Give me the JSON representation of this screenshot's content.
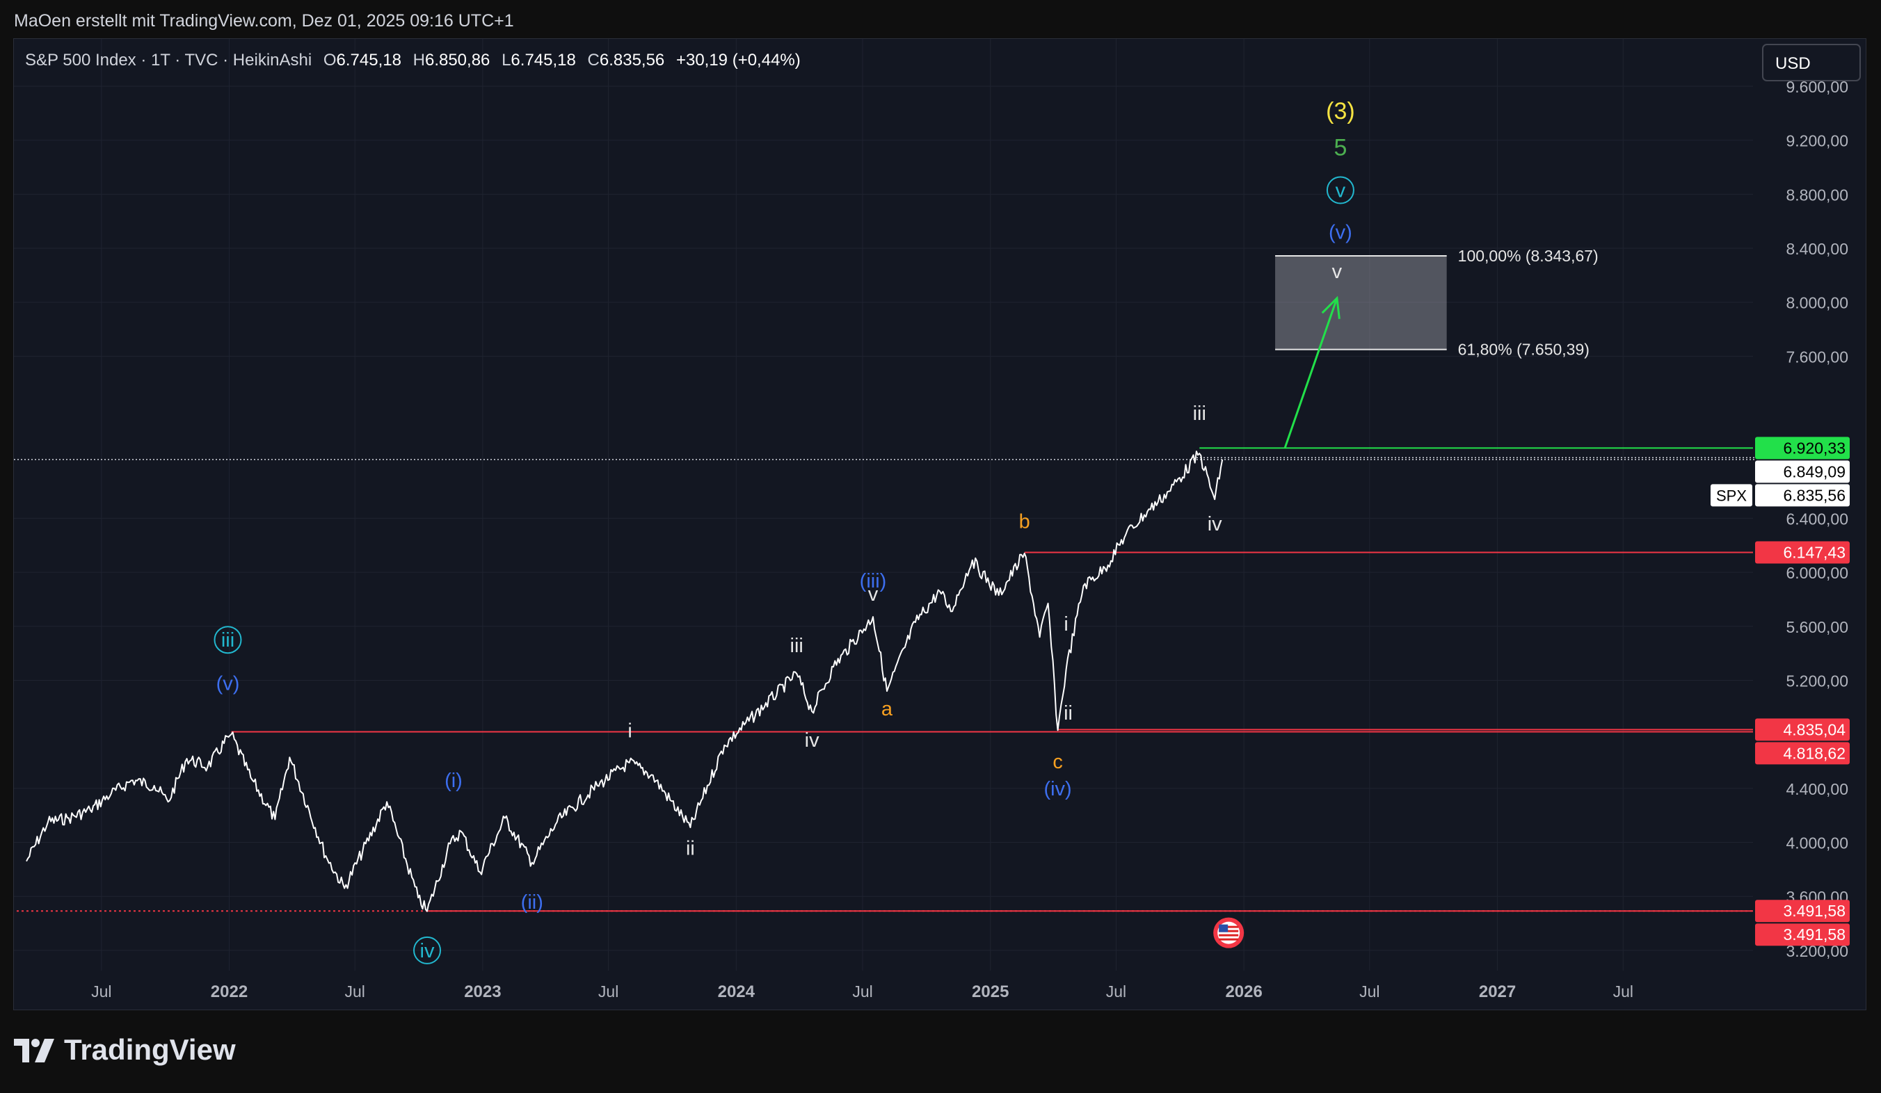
{
  "header": {
    "attribution": "MaOen erstellt mit TradingView.com, Dez 01, 2025 09:16 UTC+1"
  },
  "legend": {
    "symbol": "S&P 500 Index · 1T · TVC · HeikinAshi",
    "o_label": "O",
    "o_value": "6.745,18",
    "h_label": "H",
    "h_value": "6.850,86",
    "l_label": "L",
    "l_value": "6.745,18",
    "c_label": "C",
    "c_value": "6.835,56",
    "change": "+30,19 (+0,44%)"
  },
  "currency_button": "USD",
  "footer": {
    "brand": "TradingView"
  },
  "colors": {
    "background": "#131722",
    "grid": "#1f2330",
    "price": "#ffffff",
    "red_level": "#f23645",
    "green_level": "#22e04a",
    "wave_blue": "#3d6ff0",
    "wave_cyan": "#22b8cf",
    "wave_orange": "#f7a021",
    "wave_yellow": "#f5e342",
    "wave_green": "#4caf50",
    "white": "#e6e6e6"
  },
  "chart_data": {
    "type": "line",
    "style": "HeikinAshi",
    "title": "S&P 500 Index · 1T · TVC · HeikinAshi",
    "ylim": [
      3050,
      9950
    ],
    "y_ticks": [
      {
        "v": 3200,
        "label": "3.200,00"
      },
      {
        "v": 3600,
        "label": "3.600,00"
      },
      {
        "v": 4000,
        "label": "4.000,00"
      },
      {
        "v": 4400,
        "label": "4.400,00"
      },
      {
        "v": 5200,
        "label": "5.200,00"
      },
      {
        "v": 5600,
        "label": "5.600,00"
      },
      {
        "v": 6000,
        "label": "6.000,00"
      },
      {
        "v": 6400,
        "label": "6.400,00"
      },
      {
        "v": 7600,
        "label": "7.600,00"
      },
      {
        "v": 8000,
        "label": "8.000,00"
      },
      {
        "v": 8400,
        "label": "8.400,00"
      },
      {
        "v": 8800,
        "label": "8.800,00"
      },
      {
        "v": 9200,
        "label": "9.200,00"
      },
      {
        "v": 9600,
        "label": "9.600,00"
      }
    ],
    "x_ticks": [
      {
        "t": "2021-07-01",
        "label": "Jul",
        "major": false
      },
      {
        "t": "2022-01-01",
        "label": "2022",
        "major": true
      },
      {
        "t": "2022-07-01",
        "label": "Jul",
        "major": false
      },
      {
        "t": "2023-01-01",
        "label": "2023",
        "major": true
      },
      {
        "t": "2023-07-01",
        "label": "Jul",
        "major": false
      },
      {
        "t": "2024-01-01",
        "label": "2024",
        "major": true
      },
      {
        "t": "2024-07-01",
        "label": "Jul",
        "major": false
      },
      {
        "t": "2025-01-01",
        "label": "2025",
        "major": true
      },
      {
        "t": "2025-07-01",
        "label": "Jul",
        "major": false
      },
      {
        "t": "2026-01-01",
        "label": "2026",
        "major": true
      },
      {
        "t": "2026-07-01",
        "label": "Jul",
        "major": false
      },
      {
        "t": "2027-01-01",
        "label": "2027",
        "major": true
      },
      {
        "t": "2027-07-01",
        "label": "Jul",
        "major": false
      }
    ],
    "series": [
      {
        "points": [
          [
            "2021-03-15",
            3860
          ],
          [
            "2021-04-15",
            4150
          ],
          [
            "2021-05-15",
            4180
          ],
          [
            "2021-06-15",
            4240
          ],
          [
            "2021-07-15",
            4360
          ],
          [
            "2021-08-15",
            4460
          ],
          [
            "2021-09-15",
            4420
          ],
          [
            "2021-10-05",
            4300
          ],
          [
            "2021-11-01",
            4620
          ],
          [
            "2021-12-01",
            4560
          ],
          [
            "2021-12-31",
            4780
          ],
          [
            "2022-01-04",
            4800
          ],
          [
            "2022-02-01",
            4480
          ],
          [
            "2022-03-08",
            4170
          ],
          [
            "2022-03-29",
            4630
          ],
          [
            "2022-05-20",
            3900
          ],
          [
            "2022-06-16",
            3660
          ],
          [
            "2022-08-16",
            4300
          ],
          [
            "2022-09-30",
            3590
          ],
          [
            "2022-10-13",
            3490
          ],
          [
            "2022-11-15",
            3990
          ],
          [
            "2022-12-01",
            4080
          ],
          [
            "2022-12-28",
            3780
          ],
          [
            "2023-02-02",
            4180
          ],
          [
            "2023-03-13",
            3850
          ],
          [
            "2023-04-18",
            4150
          ],
          [
            "2023-06-15",
            4420
          ],
          [
            "2023-07-31",
            4590
          ],
          [
            "2023-09-01",
            4500
          ],
          [
            "2023-10-27",
            4110
          ],
          [
            "2023-12-15",
            4720
          ],
          [
            "2024-03-28",
            5250
          ],
          [
            "2024-04-19",
            4970
          ],
          [
            "2024-05-20",
            5300
          ],
          [
            "2024-07-16",
            5670
          ],
          [
            "2024-08-05",
            5120
          ],
          [
            "2024-09-15",
            5630
          ],
          [
            "2024-10-20",
            5860
          ],
          [
            "2024-11-05",
            5710
          ],
          [
            "2024-12-06",
            6090
          ],
          [
            "2025-01-13",
            5830
          ],
          [
            "2025-02-19",
            6140
          ],
          [
            "2025-03-13",
            5520
          ],
          [
            "2025-03-25",
            5770
          ],
          [
            "2025-04-08",
            4830
          ],
          [
            "2025-04-20",
            5280
          ],
          [
            "2025-05-15",
            5900
          ],
          [
            "2025-06-15",
            6030
          ],
          [
            "2025-07-15",
            6280
          ],
          [
            "2025-08-15",
            6450
          ],
          [
            "2025-09-15",
            6600
          ],
          [
            "2025-10-29",
            6880
          ],
          [
            "2025-11-20",
            6540
          ],
          [
            "2025-12-01",
            6835
          ]
        ]
      }
    ],
    "levels": [
      {
        "value": 6920.33,
        "label": "6.920,33",
        "color": "green",
        "from": "2025-10-29"
      },
      {
        "value": 6147.43,
        "label": "6.147,43",
        "color": "red",
        "from": "2025-02-19"
      },
      {
        "value": 4835.04,
        "label": "4.835,04",
        "color": "red",
        "from": "2025-04-08"
      },
      {
        "value": 4818.62,
        "label": "4.818,62",
        "color": "red",
        "from": "2022-01-04"
      },
      {
        "value": 3491.58,
        "label": "3.491,58",
        "color": "red",
        "from": "2021-03-01",
        "dotted": true
      },
      {
        "value": 3491.58,
        "label": "3.491,58",
        "color": "red",
        "from": "2022-10-13"
      }
    ],
    "current_price": {
      "value": 6835.56,
      "label": "6.835,56",
      "symbol": "SPX"
    },
    "extra_price_label": {
      "value": 6849.09,
      "label": "6.849,09"
    },
    "fib_box": {
      "t_start": "2026-02-15",
      "t_end": "2026-10-20",
      "top": 8343.67,
      "bottom": 7650.39,
      "top_label": "100,00% (8.343,67)",
      "bottom_label": "61,80% (7.650,39)"
    },
    "projection": {
      "from": [
        "2026-03-01",
        6920
      ],
      "to": [
        "2026-05-15",
        8030
      ]
    },
    "wave_labels": [
      {
        "t": "2021-12-30",
        "v": 5500,
        "text": "iii",
        "color": "cyan",
        "circle": true
      },
      {
        "t": "2021-12-30",
        "v": 5180,
        "text": "(v)",
        "color": "blue"
      },
      {
        "t": "2022-10-13",
        "v": 3200,
        "text": "iv",
        "color": "cyan",
        "circle": true
      },
      {
        "t": "2022-11-20",
        "v": 4460,
        "text": "(i)",
        "color": "blue"
      },
      {
        "t": "2023-03-13",
        "v": 3560,
        "text": "(ii)",
        "color": "blue"
      },
      {
        "t": "2023-08-01",
        "v": 4830,
        "text": "i",
        "color": "white"
      },
      {
        "t": "2023-10-27",
        "v": 3960,
        "text": "ii",
        "color": "white"
      },
      {
        "t": "2024-03-28",
        "v": 5460,
        "text": "iii",
        "color": "white"
      },
      {
        "t": "2024-04-19",
        "v": 4760,
        "text": "iv",
        "color": "white"
      },
      {
        "t": "2024-07-16",
        "v": 5940,
        "text": "(iii)",
        "color": "blue"
      },
      {
        "t": "2024-07-16",
        "v": 5840,
        "text": "v",
        "color": "white"
      },
      {
        "t": "2024-08-05",
        "v": 4990,
        "text": "a",
        "color": "orange"
      },
      {
        "t": "2025-02-19",
        "v": 6380,
        "text": "b",
        "color": "orange"
      },
      {
        "t": "2025-04-08",
        "v": 4600,
        "text": "c",
        "color": "orange"
      },
      {
        "t": "2025-04-08",
        "v": 4400,
        "text": "(iv)",
        "color": "blue"
      },
      {
        "t": "2025-04-20",
        "v": 5620,
        "text": "i",
        "color": "white"
      },
      {
        "t": "2025-04-23",
        "v": 4960,
        "text": "ii",
        "color": "white"
      },
      {
        "t": "2025-10-29",
        "v": 7180,
        "text": "iii",
        "color": "white"
      },
      {
        "t": "2025-11-20",
        "v": 6360,
        "text": "iv",
        "color": "white"
      },
      {
        "t": "2026-05-15",
        "v": 8230,
        "text": "v",
        "color": "white"
      },
      {
        "t": "2026-05-20",
        "v": 8520,
        "text": "(v)",
        "color": "blue"
      },
      {
        "t": "2026-05-20",
        "v": 8830,
        "text": "v",
        "color": "cyan",
        "circle": true
      },
      {
        "t": "2026-05-20",
        "v": 9140,
        "text": "5",
        "color": "green"
      },
      {
        "t": "2026-05-20",
        "v": 9410,
        "text": "(3)",
        "color": "yellow"
      }
    ],
    "event_marker": {
      "t": "2025-12-10",
      "v": 3330,
      "icon": "us-flag-icon"
    }
  }
}
